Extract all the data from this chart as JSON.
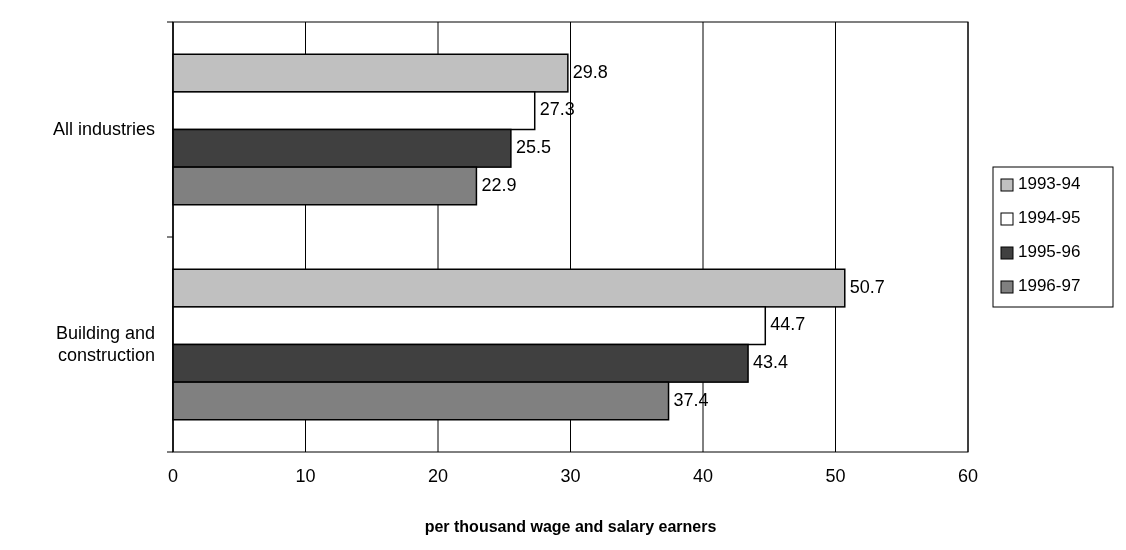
{
  "chart_data": {
    "type": "bar",
    "orientation": "horizontal",
    "xlabel": "per thousand wage and salary earners",
    "categories": [
      "All industries",
      "Building and\nconstruction"
    ],
    "series": [
      {
        "name": "1993-94",
        "color": "#c0c0c0",
        "values": [
          29.8,
          50.7
        ]
      },
      {
        "name": "1994-95",
        "color": "#ffffff",
        "values": [
          27.3,
          44.7
        ]
      },
      {
        "name": "1995-96",
        "color": "#404040",
        "values": [
          25.5,
          43.4
        ]
      },
      {
        "name": "1996-97",
        "color": "#808080",
        "values": [
          22.9,
          37.4
        ]
      }
    ],
    "xlim": [
      0,
      60
    ],
    "xticks": [
      0,
      10,
      20,
      30,
      40,
      50,
      60
    ],
    "grid": "x",
    "legend": "right",
    "data_labels": true
  }
}
